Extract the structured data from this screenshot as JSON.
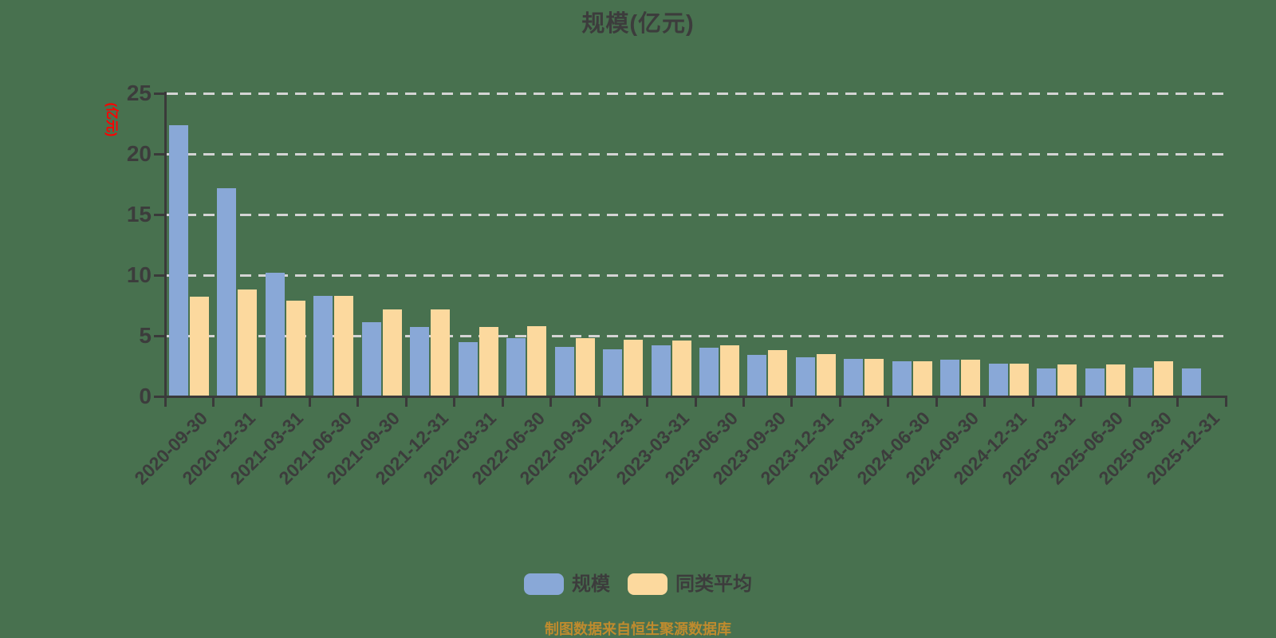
{
  "title": "规模(亿元)",
  "y_axis_name": "(亿元)",
  "footer": "制图数据来自恒生聚源数据库",
  "legend": {
    "items": [
      {
        "label": "规模",
        "color": "#89a8d7"
      },
      {
        "label": "同类平均",
        "color": "#fcd99e"
      }
    ]
  },
  "colors": {
    "background": "#48714f",
    "bar_scale": "#89a8d7",
    "bar_peer_avg": "#fcd99e",
    "axis": "#3a3a3a",
    "text": "#3c3c3c",
    "gridline": "#d4d4d4",
    "y_axis_name": "#ff0000",
    "footer": "#bf8b2e"
  },
  "chart_data": {
    "type": "bar",
    "title": "规模(亿元)",
    "xlabel": "",
    "ylabel": "(亿元)",
    "ylim": [
      0,
      25
    ],
    "y_ticks": [
      0,
      5,
      10,
      15,
      20,
      25
    ],
    "grid": "horizontal-dashed",
    "legend_position": "bottom-center",
    "categories": [
      "2020-09-30",
      "2020-12-31",
      "2021-03-31",
      "2021-06-30",
      "2021-09-30",
      "2021-12-31",
      "2022-03-31",
      "2022-06-30",
      "2022-09-30",
      "2022-12-31",
      "2023-03-31",
      "2023-06-30",
      "2023-09-30",
      "2023-12-31",
      "2024-03-31",
      "2024-06-30",
      "2024-09-30",
      "2024-12-31",
      "2025-03-31",
      "2025-06-30",
      "2025-09-30",
      "2025-12-31"
    ],
    "series": [
      {
        "name": "规模",
        "color": "#89a8d7",
        "values": [
          22.4,
          17.2,
          10.2,
          8.3,
          6.1,
          5.7,
          4.5,
          4.8,
          4.1,
          3.9,
          4.2,
          4.0,
          3.4,
          3.2,
          3.1,
          2.9,
          3.0,
          2.7,
          2.3,
          2.3,
          2.4,
          2.3
        ]
      },
      {
        "name": "同类平均",
        "color": "#fcd99e",
        "values": [
          8.2,
          8.8,
          7.9,
          8.3,
          7.2,
          7.2,
          5.7,
          5.8,
          4.8,
          4.7,
          4.6,
          4.2,
          3.8,
          3.5,
          3.1,
          2.9,
          3.0,
          2.7,
          2.6,
          2.6,
          2.9,
          null
        ]
      }
    ]
  }
}
